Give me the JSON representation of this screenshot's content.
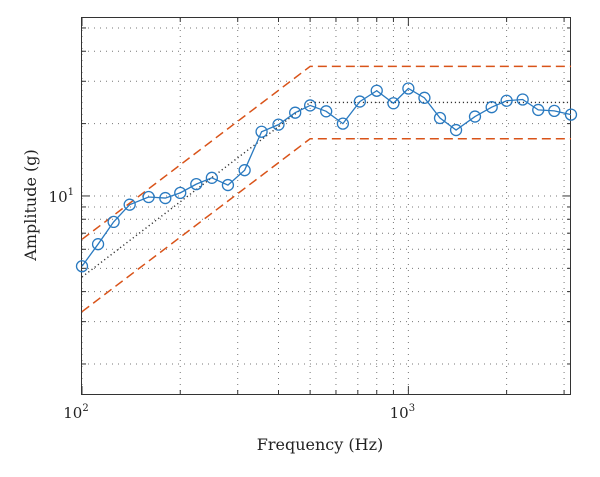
{
  "chart_data": {
    "type": "line",
    "title": "",
    "xlabel": "Frequency (Hz)",
    "ylabel": "Amplitude (g)",
    "xscale": "log",
    "yscale": "log",
    "xlim": [
      100,
      3150
    ],
    "ylim": [
      1.5,
      55
    ],
    "grid": "dotted",
    "x_ticks": [
      {
        "base": "10",
        "exp": "2",
        "value": 100
      },
      {
        "base": "10",
        "exp": "3",
        "value": 1000
      }
    ],
    "y_ticks": [
      {
        "base": "10",
        "exp": "1",
        "value": 10
      }
    ],
    "series": [
      {
        "style": "solid-circle-markers",
        "color": "#2a7ac0",
        "x": [
          100,
          112,
          125,
          140,
          160,
          180,
          200,
          224,
          250,
          280,
          315,
          355,
          400,
          450,
          500,
          560,
          630,
          710,
          800,
          900,
          1000,
          1120,
          1250,
          1400,
          1600,
          1800,
          2000,
          2240,
          2500,
          2800,
          3150
        ],
        "y": [
          5.1,
          6.3,
          7.8,
          9.2,
          9.9,
          9.8,
          10.3,
          11.2,
          11.9,
          11.1,
          12.8,
          18.5,
          19.8,
          22.2,
          23.8,
          22.5,
          20.0,
          24.7,
          27.4,
          24.3,
          28.0,
          25.6,
          21.1,
          18.8,
          21.4,
          23.4,
          24.9,
          25.2,
          22.8,
          22.6,
          21.8
        ]
      },
      {
        "style": "dotted-reference",
        "color": "#333333",
        "x": [
          100,
          500,
          3150
        ],
        "y": [
          4.6,
          24.5,
          24.5
        ]
      },
      {
        "style": "dashed-upper-limit",
        "color": "#d95319",
        "x": [
          100,
          500,
          3150
        ],
        "y": [
          6.6,
          34.6,
          34.6
        ]
      },
      {
        "style": "dashed-lower-limit",
        "color": "#d95319",
        "x": [
          100,
          500,
          3150
        ],
        "y": [
          3.3,
          17.3,
          17.3
        ]
      }
    ]
  }
}
